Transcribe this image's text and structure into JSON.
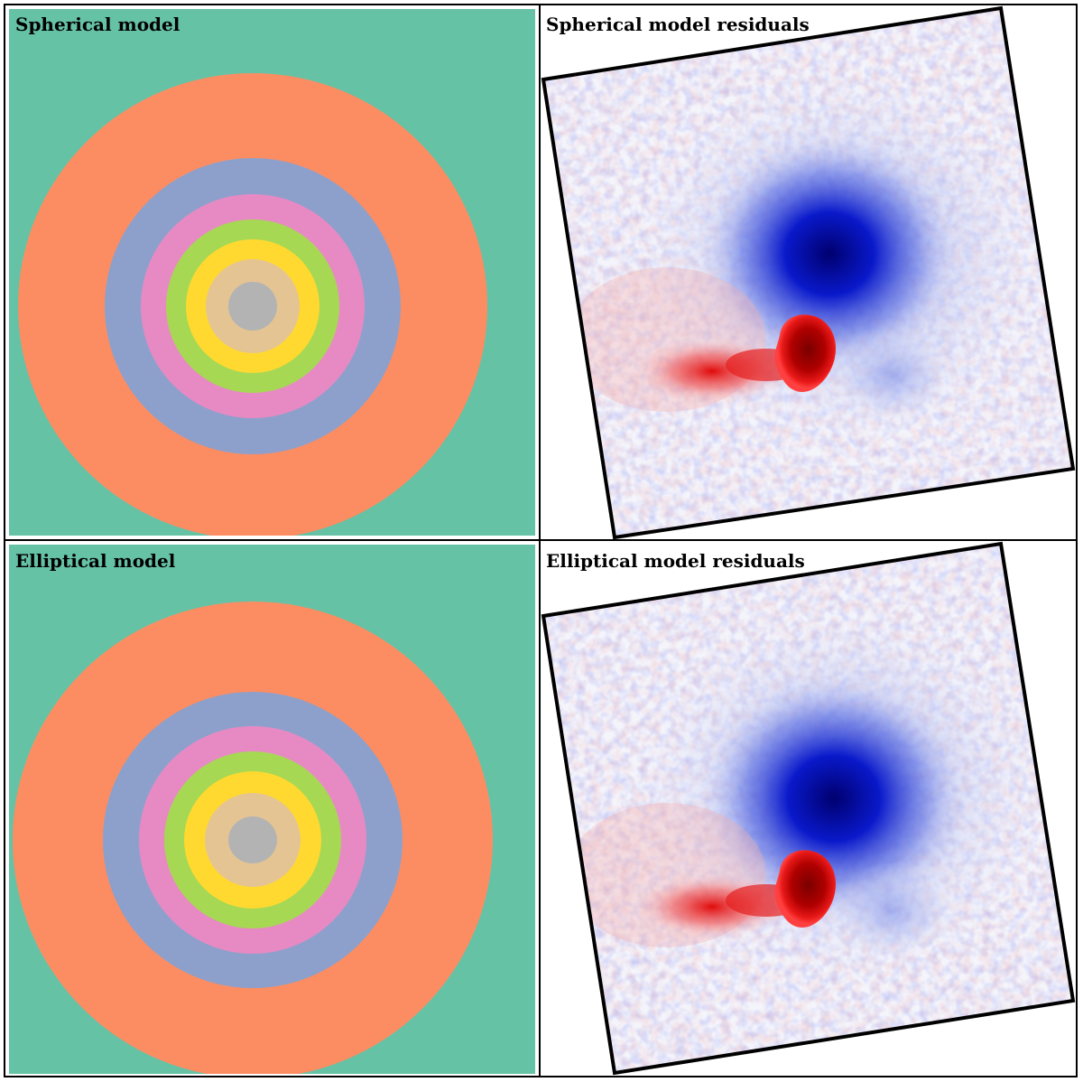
{
  "panels": [
    {
      "title": "Spherical model",
      "kind": "model"
    },
    {
      "title": "Spherical model residuals",
      "kind": "residual"
    },
    {
      "title": "Elliptical model",
      "kind": "model"
    },
    {
      "title": "Elliptical model residuals",
      "kind": "residual"
    }
  ],
  "colors": {
    "background": "#66c2a5",
    "rings": [
      "#fc8d62",
      "#8da0cb",
      "#e78ac3",
      "#a6d854",
      "#ffd92f",
      "#e5c494",
      "#b3b3b3"
    ],
    "residual_negative": "#0000cc",
    "residual_positive": "#e60000",
    "residual_peak": "#800000",
    "frame": "#000000"
  }
}
